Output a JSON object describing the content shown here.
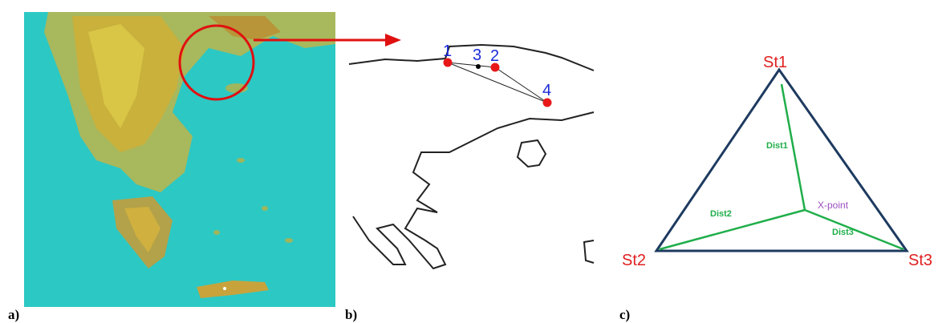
{
  "panels": {
    "a": "a)",
    "b": "b)",
    "c": "c)"
  },
  "points": [
    {
      "label": "1"
    },
    {
      "label": "3"
    },
    {
      "label": "2"
    },
    {
      "label": "4"
    }
  ],
  "triangle": {
    "stations": [
      "St1",
      "St2",
      "St3"
    ],
    "distances": [
      "Dist1",
      "Dist2",
      "Dist3"
    ],
    "center": "X-point"
  }
}
